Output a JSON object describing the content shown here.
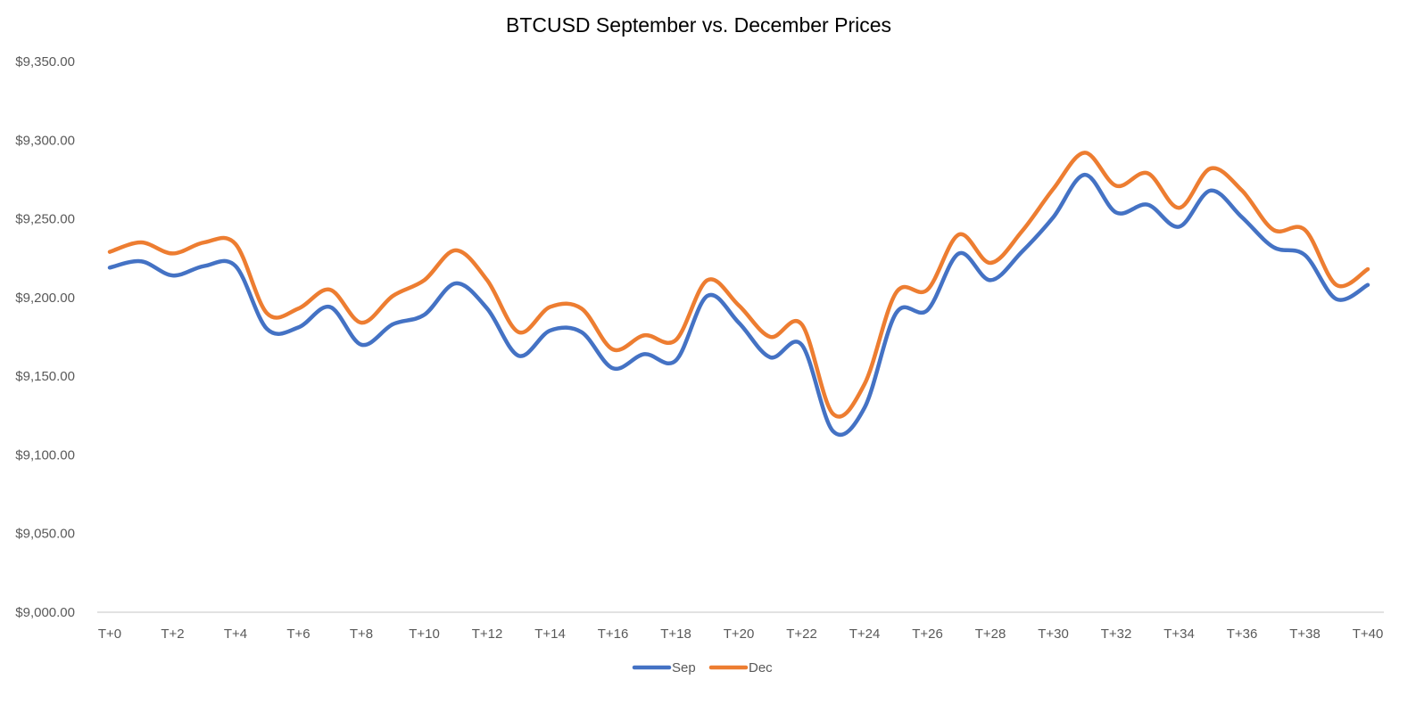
{
  "chart_data": {
    "type": "line",
    "title": "BTCUSD September vs. December Prices",
    "xlabel": "",
    "ylabel": "",
    "ylim": [
      9000,
      9350
    ],
    "yticks": [
      9000,
      9050,
      9100,
      9150,
      9200,
      9250,
      9300,
      9350
    ],
    "ytick_labels": [
      "$9,000.00",
      "$9,050.00",
      "$9,100.00",
      "$9,150.00",
      "$9,200.00",
      "$9,250.00",
      "$9,300.00",
      "$9,350.00"
    ],
    "categories": [
      "T+0",
      "T+1",
      "T+2",
      "T+3",
      "T+4",
      "T+5",
      "T+6",
      "T+7",
      "T+8",
      "T+9",
      "T+10",
      "T+11",
      "T+12",
      "T+13",
      "T+14",
      "T+15",
      "T+16",
      "T+17",
      "T+18",
      "T+19",
      "T+20",
      "T+21",
      "T+22",
      "T+23",
      "T+24",
      "T+25",
      "T+26",
      "T+27",
      "T+28",
      "T+29",
      "T+30",
      "T+31",
      "T+32",
      "T+33",
      "T+34",
      "T+35",
      "T+36",
      "T+37",
      "T+38",
      "T+39",
      "T+40"
    ],
    "xtick_labels": [
      "T+0",
      "T+2",
      "T+4",
      "T+6",
      "T+8",
      "T+10",
      "T+12",
      "T+14",
      "T+16",
      "T+18",
      "T+20",
      "T+22",
      "T+24",
      "T+26",
      "T+28",
      "T+30",
      "T+32",
      "T+34",
      "T+36",
      "T+38",
      "T+40"
    ],
    "grid": false,
    "legend": "bottom",
    "series": [
      {
        "name": "Sep",
        "color": "#4472c4",
        "values": [
          9219,
          9223,
          9214,
          9220,
          9220,
          9180,
          9181,
          9194,
          9170,
          9183,
          9189,
          9209,
          9193,
          9163,
          9179,
          9178,
          9155,
          9164,
          9160,
          9201,
          9184,
          9162,
          9170,
          9115,
          9130,
          9190,
          9192,
          9228,
          9211,
          9229,
          9251,
          9278,
          9254,
          9259,
          9245,
          9268,
          9251,
          9232,
          9227,
          9199,
          9208
        ]
      },
      {
        "name": "Dec",
        "color": "#ed7d31",
        "values": [
          9229,
          9235,
          9228,
          9235,
          9234,
          9190,
          9193,
          9205,
          9184,
          9201,
          9211,
          9230,
          9211,
          9178,
          9194,
          9193,
          9167,
          9176,
          9173,
          9211,
          9195,
          9175,
          9183,
          9126,
          9145,
          9203,
          9205,
          9240,
          9222,
          9242,
          9269,
          9292,
          9271,
          9279,
          9257,
          9282,
          9268,
          9243,
          9243,
          9208,
          9218
        ]
      }
    ]
  }
}
